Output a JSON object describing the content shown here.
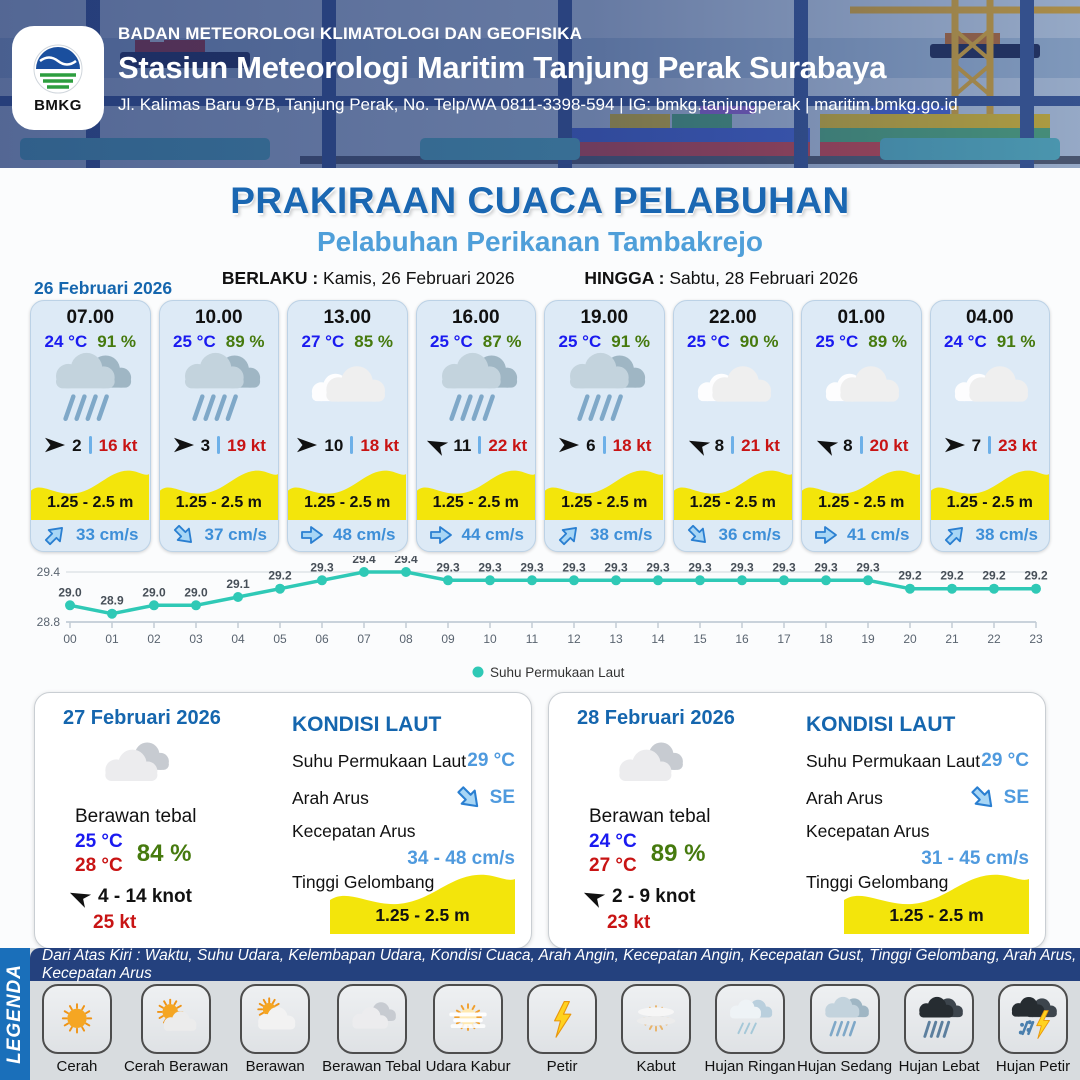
{
  "header": {
    "agency": "BADAN METEOROLOGI KLIMATOLOGI DAN GEOFISIKA",
    "station": "Stasiun Meteorologi Maritim Tanjung Perak Surabaya",
    "address": "Jl. Kalimas Baru 97B, Tanjung Perak, No. Telp/WA 0811-3398-594 | IG: bmkg.tanjungperak | maritim.bmkg.go.id",
    "logo_text": "BMKG"
  },
  "title": {
    "main": "PRAKIRAAN CUACA PELABUHAN",
    "subtitle": "Pelabuhan Perikanan Tambakrejo",
    "berlaku_label": "BERLAKU :",
    "berlaku_value": "Kamis, 26 Februari 2026",
    "hingga_label": "HINGGA :",
    "hingga_value": "Sabtu, 28 Februari 2026"
  },
  "day_label": "26 Februari 2026",
  "forecast_cards": [
    {
      "time": "07.00",
      "temp": "24 °C",
      "humidity": "91 %",
      "icon": "hujan-sedang",
      "wind_dir_deg": 0,
      "wind": "2",
      "gust": "16 kt",
      "wave": "1.25 - 2.5 m",
      "current_dir": "ne",
      "current": "33 cm/s"
    },
    {
      "time": "10.00",
      "temp": "25 °C",
      "humidity": "89 %",
      "icon": "hujan-sedang",
      "wind_dir_deg": 0,
      "wind": "3",
      "gust": "19 kt",
      "wave": "1.25 - 2.5 m",
      "current_dir": "se",
      "current": "37 cm/s"
    },
    {
      "time": "13.00",
      "temp": "27 °C",
      "humidity": "85 %",
      "icon": "berawan",
      "wind_dir_deg": 0,
      "wind": "10",
      "gust": "18 kt",
      "wave": "1.25 - 2.5 m",
      "current_dir": "e",
      "current": "48 cm/s"
    },
    {
      "time": "16.00",
      "temp": "25 °C",
      "humidity": "87 %",
      "icon": "hujan-sedang",
      "wind_dir_deg": 205,
      "wind": "11",
      "gust": "22 kt",
      "wave": "1.25 - 2.5 m",
      "current_dir": "e",
      "current": "44 cm/s"
    },
    {
      "time": "19.00",
      "temp": "25 °C",
      "humidity": "91 %",
      "icon": "hujan-sedang",
      "wind_dir_deg": 0,
      "wind": "6",
      "gust": "18 kt",
      "wave": "1.25 - 2.5 m",
      "current_dir": "ne",
      "current": "38 cm/s"
    },
    {
      "time": "22.00",
      "temp": "25 °C",
      "humidity": "90 %",
      "icon": "berawan",
      "wind_dir_deg": 205,
      "wind": "8",
      "gust": "21 kt",
      "wave": "1.25 - 2.5 m",
      "current_dir": "se",
      "current": "36 cm/s"
    },
    {
      "time": "01.00",
      "temp": "25 °C",
      "humidity": "89 %",
      "icon": "berawan",
      "wind_dir_deg": 205,
      "wind": "8",
      "gust": "20 kt",
      "wave": "1.25 - 2.5 m",
      "current_dir": "e",
      "current": "41 cm/s"
    },
    {
      "time": "04.00",
      "temp": "24 °C",
      "humidity": "91 %",
      "icon": "berawan",
      "wind_dir_deg": 0,
      "wind": "7",
      "gust": "23 kt",
      "wave": "1.25 - 2.5 m",
      "current_dir": "ne",
      "current": "38 cm/s"
    }
  ],
  "chart_data": {
    "type": "line",
    "x": [
      "00",
      "01",
      "02",
      "03",
      "04",
      "05",
      "06",
      "07",
      "08",
      "09",
      "10",
      "11",
      "12",
      "13",
      "14",
      "15",
      "16",
      "17",
      "18",
      "19",
      "20",
      "21",
      "22",
      "23"
    ],
    "series": [
      {
        "name": "Suhu Permukaan Laut",
        "values": [
          29.0,
          28.9,
          29.0,
          29.0,
          29.1,
          29.2,
          29.3,
          29.4,
          29.4,
          29.3,
          29.3,
          29.3,
          29.3,
          29.3,
          29.3,
          29.3,
          29.3,
          29.3,
          29.3,
          29.3,
          29.2,
          29.2,
          29.2,
          29.2
        ]
      }
    ],
    "ylim": [
      28.8,
      29.4
    ],
    "yticks": [
      28.8,
      29.4
    ],
    "line_color": "#2fc9b6",
    "grid": "horizontal",
    "legend_position": "bottom"
  },
  "summaries": [
    {
      "date": "27 Februari 2026",
      "icon": "berawan-tebal",
      "condition": "Berawan tebal",
      "temp_low": "25 °C",
      "temp_high": "28 °C",
      "humidity": "84 %",
      "wind": "4  - 14 knot",
      "gust": "25 kt",
      "sea": {
        "title": "KONDISI LAUT",
        "sst_label": "Suhu Permukaan Laut",
        "sst": "29 °C",
        "current_dir_label": "Arah Arus",
        "current_dir": "SE",
        "current_label": "Kecepatan Arus",
        "current": "34 - 48 cm/s",
        "wave_label": "Tinggi Gelombang",
        "wave": "1.25 - 2.5 m"
      }
    },
    {
      "date": "28 Februari 2026",
      "icon": "berawan-tebal",
      "condition": "Berawan tebal",
      "temp_low": "24 °C",
      "temp_high": "27 °C",
      "humidity": "89 %",
      "wind": "2  - 9 knot",
      "gust": "23 kt",
      "sea": {
        "title": "KONDISI LAUT",
        "sst_label": "Suhu Permukaan Laut",
        "sst": "29 °C",
        "current_dir_label": "Arah Arus",
        "current_dir": "SE",
        "current_label": "Kecepatan Arus",
        "current": "31 - 45 cm/s",
        "wave_label": "Tinggi Gelombang",
        "wave": "1.25 - 2.5 m"
      }
    }
  ],
  "legend": {
    "title": "LEGENDA",
    "caption": "Dari Atas Kiri : Waktu, Suhu Udara, Kelembapan Udara, Kondisi Cuaca, Arah Angin, Kecepatan Angin, Kecepatan Gust, Tinggi Gelombang, Arah Arus, Kecepatan Arus",
    "items": [
      {
        "icon": "cerah",
        "label": "Cerah"
      },
      {
        "icon": "cerah-berawan",
        "label": "Cerah Berawan"
      },
      {
        "icon": "berawan-day",
        "label": "Berawan"
      },
      {
        "icon": "berawan-tebal",
        "label": "Berawan Tebal"
      },
      {
        "icon": "udara-kabur",
        "label": "Udara Kabur"
      },
      {
        "icon": "petir",
        "label": "Petir"
      },
      {
        "icon": "kabut",
        "label": "Kabut"
      },
      {
        "icon": "hujan-ringan",
        "label": "Hujan Ringan"
      },
      {
        "icon": "hujan-sedang",
        "label": "Hujan Sedang"
      },
      {
        "icon": "hujan-lebat",
        "label": "Hujan Lebat"
      },
      {
        "icon": "hujan-petir",
        "label": "Hujan Petir"
      }
    ]
  },
  "colors": {
    "title_blue": "#1a67b2",
    "subtitle_blue": "#4f9fd9",
    "temp_blue": "#1a1af0",
    "humidity_green": "#467a0e",
    "gust_red": "#c81414",
    "wave_yellow": "#f3e50b",
    "current_blue": "#3e8fd8",
    "chart_teal": "#2fc9b6",
    "legend_bar_blue": "#1a6fba",
    "caption_navy": "#24417e"
  }
}
